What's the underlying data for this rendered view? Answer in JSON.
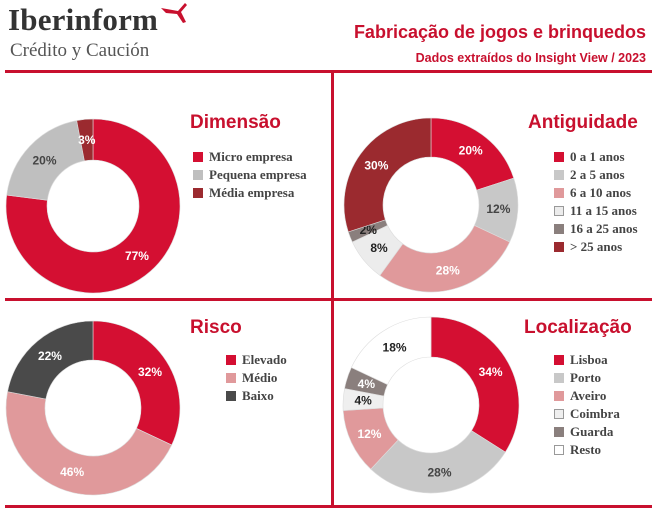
{
  "header": {
    "brand_name": "Iberinform",
    "brand_tagline": "Crédito y Caución",
    "title": "Fabricação de jogos e brinquedos",
    "subtitle": "Dados extraídos do Insight View / 2023"
  },
  "colors": {
    "accent": "#c8102e",
    "rule": "#c8102e"
  },
  "chart_data": [
    {
      "id": "dimensao",
      "type": "pie",
      "title": "Dimensão",
      "categories": [
        "Micro empresa",
        "Pequena empresa",
        "Média empresa"
      ],
      "values": [
        77,
        20,
        3
      ],
      "labels": [
        "77%",
        "20%",
        "3%"
      ],
      "colors": [
        "#d40f32",
        "#bfbfbf",
        "#9b2a2f"
      ],
      "label_colors": [
        "#ffffff",
        "#444444",
        "#ffffff"
      ],
      "start_angle": 0,
      "legend": "right"
    },
    {
      "id": "antiguidade",
      "type": "pie",
      "title": "Antiguidade",
      "categories": [
        "0 a 1 anos",
        "2 a 5 anos",
        "6 a 10 anos",
        "11 a 15 anos",
        "16 a 25 anos",
        "> 25 anos"
      ],
      "values": [
        20,
        12,
        28,
        8,
        2,
        30
      ],
      "labels": [
        "20%",
        "12%",
        "28%",
        "8%",
        "2%",
        "30%"
      ],
      "colors": [
        "#d40f32",
        "#c8c8c8",
        "#e0999b",
        "#ececec",
        "#8a7f7d",
        "#9b2a2f"
      ],
      "label_colors": [
        "#ffffff",
        "#444444",
        "#ffffff",
        "#222222",
        "#222222",
        "#ffffff"
      ],
      "start_angle": 0,
      "legend": "right"
    },
    {
      "id": "risco",
      "type": "pie",
      "title": "Risco",
      "categories": [
        "Elevado",
        "Médio",
        "Baixo"
      ],
      "values": [
        32,
        46,
        22
      ],
      "labels": [
        "32%",
        "46%",
        "22%"
      ],
      "colors": [
        "#d40f32",
        "#e0999b",
        "#4a4a4a"
      ],
      "label_colors": [
        "#ffffff",
        "#ffffff",
        "#ffffff"
      ],
      "start_angle": 0,
      "legend": "right"
    },
    {
      "id": "localizacao",
      "type": "pie",
      "title": "Localização",
      "categories": [
        "Lisboa",
        "Porto",
        "Aveiro",
        "Coimbra",
        "Guarda",
        "Resto"
      ],
      "values": [
        34,
        28,
        12,
        4,
        4,
        18
      ],
      "labels": [
        "34%",
        "28%",
        "12%",
        "4%",
        "4%",
        "18%"
      ],
      "colors": [
        "#d40f32",
        "#c8c8c8",
        "#e0999b",
        "#efefef",
        "#8a7f7d",
        "#ffffff"
      ],
      "label_colors": [
        "#ffffff",
        "#444444",
        "#ffffff",
        "#222222",
        "#ffffff",
        "#222222"
      ],
      "start_angle": 0,
      "legend": "right"
    }
  ]
}
